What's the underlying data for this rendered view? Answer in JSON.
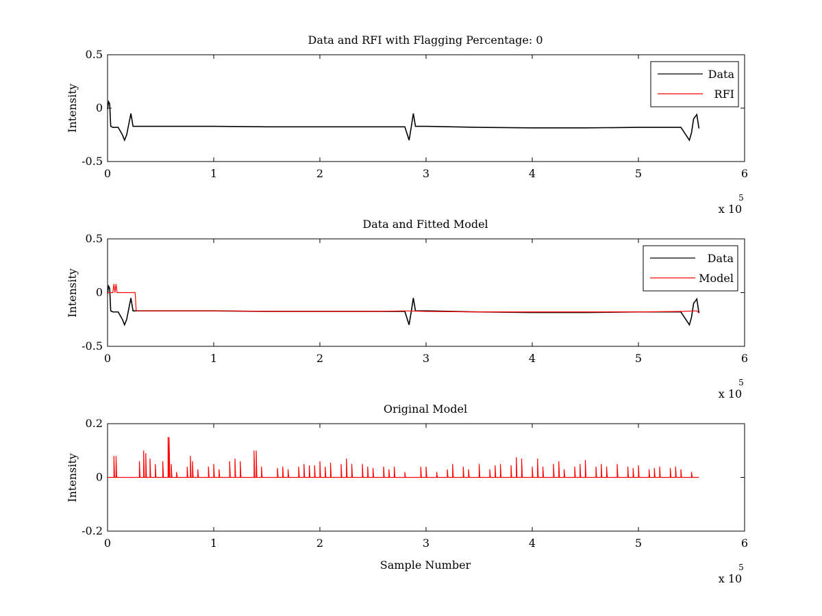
{
  "chart_data": [
    {
      "type": "line",
      "title": "Data and RFI with Flagging Percentage: 0",
      "xlabel": "",
      "ylabel": "Intensity",
      "xlim": [
        0,
        6
      ],
      "ylim": [
        -0.5,
        0.5
      ],
      "x_exponent_label": "x 10",
      "x_exponent": "5",
      "xticks": [
        "0",
        "1",
        "2",
        "3",
        "4",
        "5",
        "6"
      ],
      "yticks": [
        "-0.5",
        "0",
        "0.5"
      ],
      "legend": {
        "placement": "top-right",
        "entries": [
          "Data",
          "RFI"
        ]
      },
      "grid": false,
      "series": [
        {
          "name": "Data",
          "color": "#000000",
          "x": [
            0,
            0.01,
            0.02,
            0.03,
            0.05,
            0.1,
            0.14,
            0.16,
            0.18,
            0.2,
            0.22,
            0.24,
            0.3,
            0.5,
            1.0,
            1.5,
            2.0,
            2.5,
            2.8,
            2.84,
            2.86,
            2.88,
            2.9,
            3.0,
            3.5,
            4.0,
            4.5,
            5.0,
            5.4,
            5.48,
            5.5,
            5.52,
            5.55,
            5.57
          ],
          "y": [
            -0.01,
            0.06,
            0.04,
            -0.17,
            -0.18,
            -0.18,
            -0.25,
            -0.3,
            -0.25,
            -0.15,
            -0.05,
            -0.17,
            -0.17,
            -0.17,
            -0.17,
            -0.175,
            -0.175,
            -0.175,
            -0.175,
            -0.3,
            -0.18,
            -0.05,
            -0.17,
            -0.17,
            -0.18,
            -0.185,
            -0.185,
            -0.18,
            -0.18,
            -0.3,
            -0.23,
            -0.1,
            -0.06,
            -0.19
          ]
        },
        {
          "name": "RFI",
          "color": "#ff0000",
          "x": [],
          "y": []
        }
      ]
    },
    {
      "type": "line",
      "title": "Data and Fitted Model",
      "xlabel": "",
      "ylabel": "Intensity",
      "xlim": [
        0,
        6
      ],
      "ylim": [
        -0.5,
        0.5
      ],
      "x_exponent_label": "x 10",
      "x_exponent": "5",
      "xticks": [
        "0",
        "1",
        "2",
        "3",
        "4",
        "5",
        "6"
      ],
      "yticks": [
        "-0.5",
        "0",
        "0.5"
      ],
      "legend": {
        "placement": "top-right",
        "entries": [
          "Data",
          "Model"
        ]
      },
      "grid": false,
      "series": [
        {
          "name": "Data",
          "color": "#000000",
          "x": [
            0,
            0.01,
            0.02,
            0.03,
            0.05,
            0.1,
            0.14,
            0.16,
            0.18,
            0.2,
            0.22,
            0.24,
            0.3,
            0.5,
            1.0,
            1.5,
            2.0,
            2.5,
            2.8,
            2.84,
            2.86,
            2.88,
            2.9,
            3.0,
            3.5,
            4.0,
            4.5,
            5.0,
            5.4,
            5.48,
            5.5,
            5.52,
            5.55,
            5.57
          ],
          "y": [
            -0.01,
            0.06,
            0.04,
            -0.17,
            -0.18,
            -0.18,
            -0.25,
            -0.3,
            -0.25,
            -0.15,
            -0.05,
            -0.17,
            -0.17,
            -0.17,
            -0.17,
            -0.175,
            -0.175,
            -0.175,
            -0.175,
            -0.3,
            -0.18,
            -0.05,
            -0.17,
            -0.17,
            -0.18,
            -0.185,
            -0.185,
            -0.18,
            -0.18,
            -0.3,
            -0.23,
            -0.1,
            -0.06,
            -0.19
          ]
        },
        {
          "name": "Model",
          "color": "#ff0000",
          "x": [
            0,
            0.02,
            0.05,
            0.06,
            0.07,
            0.08,
            0.09,
            0.1,
            0.2,
            0.26,
            0.27,
            0.5,
            1.0,
            1.5,
            2.0,
            2.5,
            2.8,
            3.0,
            3.5,
            4.0,
            4.5,
            5.0,
            5.4,
            5.55,
            5.57
          ],
          "y": [
            0.0,
            0.0,
            0.0,
            0.08,
            0.0,
            0.08,
            0.0,
            0.0,
            0.0,
            0.0,
            -0.17,
            -0.17,
            -0.17,
            -0.175,
            -0.175,
            -0.175,
            -0.17,
            -0.175,
            -0.18,
            -0.18,
            -0.18,
            -0.18,
            -0.175,
            -0.17,
            -0.19
          ]
        }
      ]
    },
    {
      "type": "line",
      "title": "Original Model",
      "xlabel": "Sample Number",
      "ylabel": "Intensity",
      "xlim": [
        0,
        6
      ],
      "ylim": [
        -0.2,
        0.2
      ],
      "x_exponent_label": "x 10",
      "x_exponent": "5",
      "xticks": [
        "0",
        "1",
        "2",
        "3",
        "4",
        "5",
        "6"
      ],
      "yticks": [
        "-0.2",
        "0",
        "0.2"
      ],
      "grid": false,
      "baseline": 0,
      "x_end": 5.57,
      "series": [
        {
          "name": "",
          "color": "#ff0000",
          "spikes_x": [
            0.06,
            0.08,
            0.3,
            0.34,
            0.36,
            0.4,
            0.45,
            0.52,
            0.57,
            0.58,
            0.6,
            0.65,
            0.75,
            0.78,
            0.8,
            0.85,
            0.95,
            1.0,
            1.05,
            1.15,
            1.2,
            1.25,
            1.38,
            1.4,
            1.45,
            1.6,
            1.65,
            1.7,
            1.8,
            1.85,
            1.9,
            1.95,
            2.0,
            2.05,
            2.1,
            2.2,
            2.25,
            2.3,
            2.4,
            2.45,
            2.5,
            2.6,
            2.65,
            2.7,
            2.8,
            2.95,
            3.0,
            3.1,
            3.2,
            3.25,
            3.35,
            3.4,
            3.5,
            3.6,
            3.65,
            3.7,
            3.8,
            3.85,
            3.9,
            4.0,
            4.05,
            4.1,
            4.2,
            4.25,
            4.3,
            4.4,
            4.45,
            4.5,
            4.6,
            4.65,
            4.7,
            4.8,
            4.9,
            4.95,
            5.0,
            5.1,
            5.15,
            5.2,
            5.3,
            5.35,
            5.4,
            5.5
          ],
          "spikes_y": [
            0.08,
            0.08,
            0.06,
            0.1,
            0.09,
            0.07,
            0.05,
            0.06,
            0.15,
            0.15,
            0.05,
            0.02,
            0.04,
            0.08,
            0.06,
            0.03,
            0.04,
            0.05,
            0.03,
            0.06,
            0.07,
            0.06,
            0.1,
            0.1,
            0.04,
            0.035,
            0.04,
            0.03,
            0.04,
            0.05,
            0.045,
            0.045,
            0.06,
            0.04,
            0.055,
            0.05,
            0.07,
            0.05,
            0.05,
            0.04,
            0.035,
            0.04,
            0.03,
            0.04,
            0.02,
            0.04,
            0.04,
            0.02,
            0.03,
            0.05,
            0.04,
            0.03,
            0.05,
            0.03,
            0.045,
            0.05,
            0.045,
            0.075,
            0.07,
            0.04,
            0.07,
            0.04,
            0.05,
            0.06,
            0.03,
            0.04,
            0.05,
            0.065,
            0.04,
            0.05,
            0.04,
            0.05,
            0.04,
            0.035,
            0.045,
            0.03,
            0.035,
            0.04,
            0.035,
            0.04,
            0.03,
            0.02
          ]
        }
      ]
    }
  ]
}
